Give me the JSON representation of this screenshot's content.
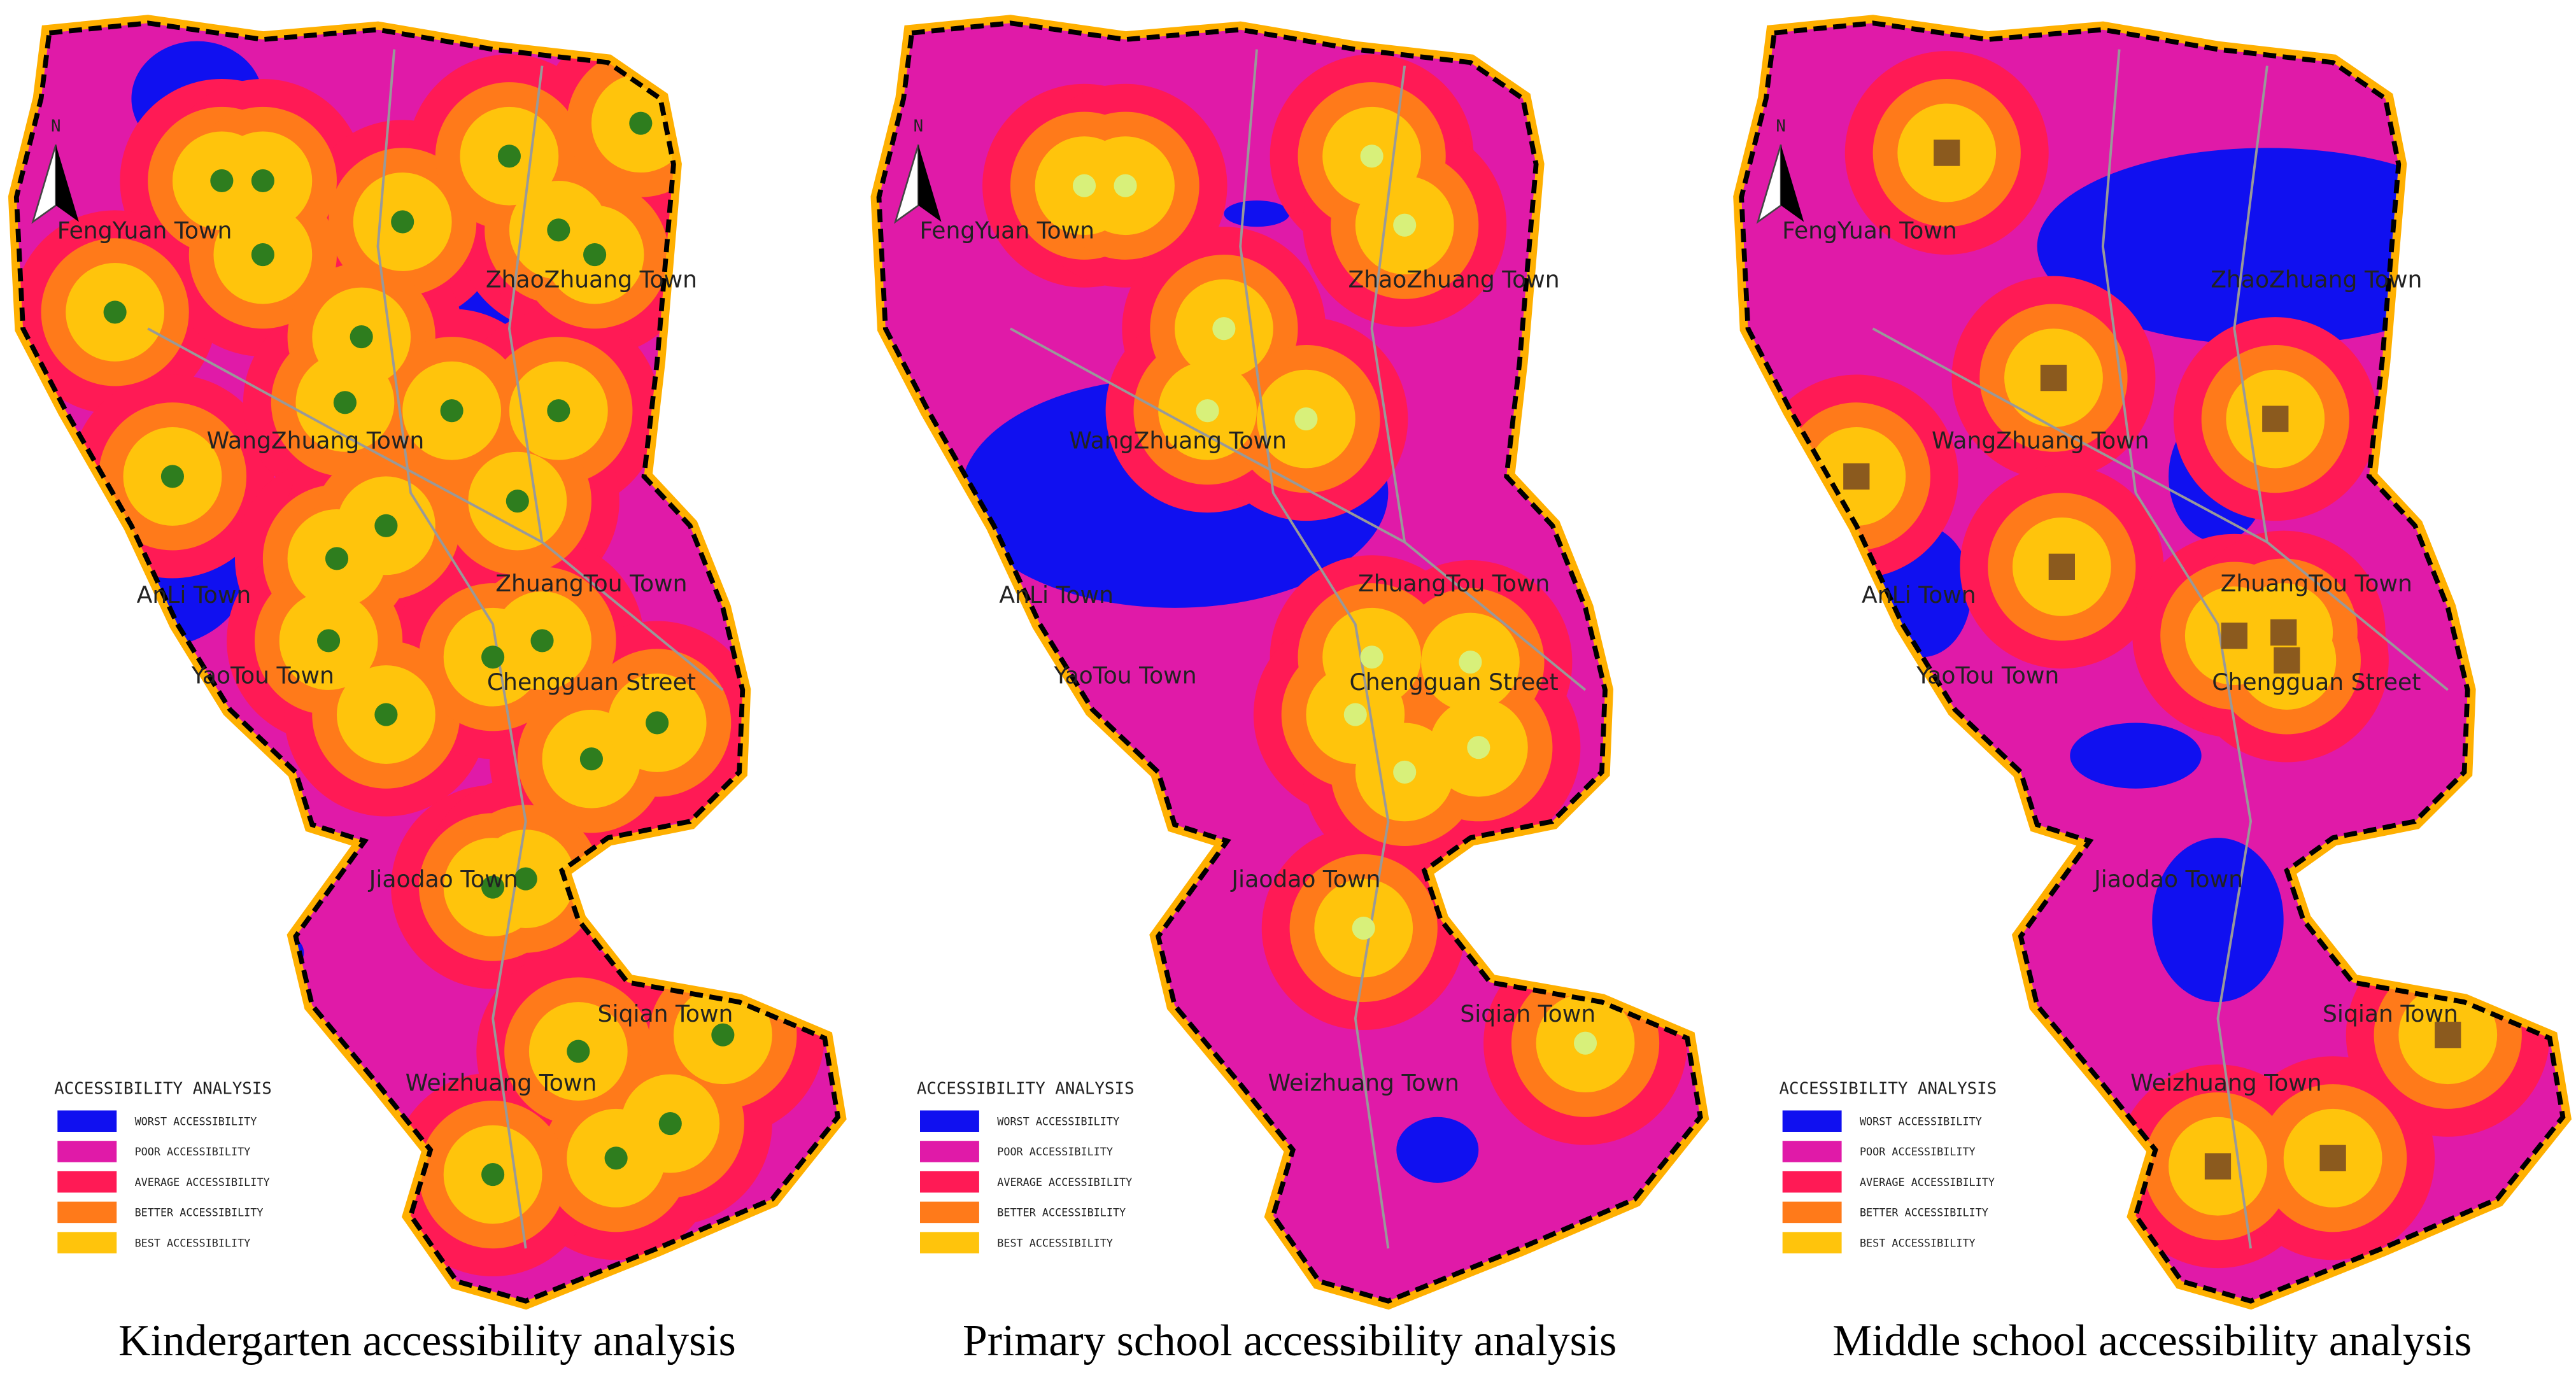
{
  "north": "N",
  "towns": [
    "FengYuan Town",
    "ZhaoZhuang Town",
    "WangZhuang Town",
    "AnLi Town",
    "ZhuangTou Town",
    "YaoTou Town",
    "Chengguan Street",
    "Jiaodao Town",
    "Siqian Town",
    "Weizhuang Town"
  ],
  "legend": {
    "title": "ACCESSIBILITY ANALYSIS",
    "items": [
      {
        "label": "WORST ACCESSIBILITY",
        "color": "#1010f0"
      },
      {
        "label": "POOR ACCESSIBILITY",
        "color": "#e01aa8"
      },
      {
        "label": "AVERAGE ACCESSIBILITY",
        "color": "#ff1a55"
      },
      {
        "label": "BETTER ACCESSIBILITY",
        "color": "#ff7a1a"
      },
      {
        "label": "BEST ACCESSIBILITY",
        "color": "#ffc40c"
      }
    ]
  },
  "panels": [
    {
      "caption": "Kindergarten accessibility analysis"
    },
    {
      "caption": "Primary school accessibility analysis"
    },
    {
      "caption": "Middle school accessibility analysis"
    }
  ]
}
